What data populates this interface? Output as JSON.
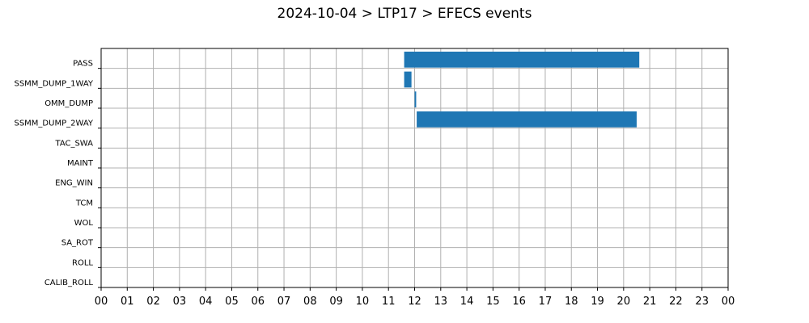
{
  "chart_data": {
    "type": "bar",
    "orientation": "horizontal-timeline",
    "title": "2024-10-04 > LTP17 > EFECS events",
    "xlabel": "",
    "ylabel": "",
    "categories": [
      "PASS",
      "SSMM_DUMP_1WAY",
      "OMM_DUMP",
      "SSMM_DUMP_2WAY",
      "TAC_SWA",
      "MAINT",
      "ENG_WIN",
      "TCM",
      "WOL",
      "SA_ROT",
      "ROLL",
      "CALIB_ROLL"
    ],
    "x_tick_labels": [
      "00",
      "01",
      "02",
      "03",
      "04",
      "05",
      "06",
      "07",
      "08",
      "09",
      "10",
      "11",
      "12",
      "13",
      "14",
      "15",
      "16",
      "17",
      "18",
      "19",
      "20",
      "21",
      "22",
      "23",
      "00"
    ],
    "xlim_hours": [
      0,
      24
    ],
    "grid": true,
    "bar_color": "#1f77b4",
    "events": [
      {
        "category": "PASS",
        "start_hour": 11.6,
        "end_hour": 20.6
      },
      {
        "category": "SSMM_DUMP_1WAY",
        "start_hour": 11.6,
        "end_hour": 11.88
      },
      {
        "category": "OMM_DUMP",
        "start_hour": 12.0,
        "end_hour": 12.06
      },
      {
        "category": "SSMM_DUMP_2WAY",
        "start_hour": 12.08,
        "end_hour": 20.5
      }
    ]
  }
}
